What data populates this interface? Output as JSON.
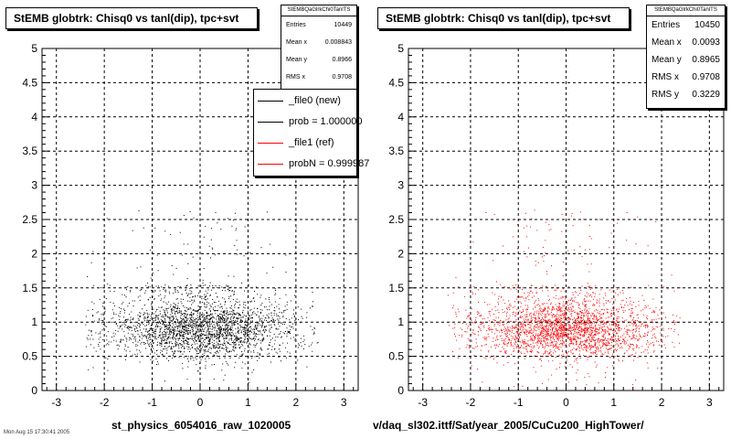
{
  "panels": [
    {
      "title": "StEMB globtrk: Chisq0 vs tanl(dip), tpc+svt",
      "xlabel": "st_physics_6054016_raw_1020005",
      "stats": {
        "name": "StEMBQaGlrkChi0TanlTS",
        "rows": [
          {
            "label": "Entries",
            "value": "10449"
          },
          {
            "label": "Mean x",
            "value": "0.008843"
          },
          {
            "label": "Mean y",
            "value": "0.8966"
          },
          {
            "label": "RMS x",
            "value": "0.9708"
          }
        ]
      },
      "legend": [
        {
          "label": "_file0 (new)",
          "color": "#000000"
        },
        {
          "label": "prob = 1.000000",
          "color": "#000000"
        },
        {
          "label": "_file1 (ref)",
          "color": "#ff0000"
        },
        {
          "label": "probN = 0.999987",
          "color": "#ff0000"
        }
      ]
    },
    {
      "title": "StEMB globtrk: Chisq0 vs tanl(dip), tpc+svt",
      "xlabel": "v/daq_sl302.ittf/Sat/year_2005/CuCu200_HighTower/",
      "stats": {
        "name": "StEMBQaGlrkChi0TanlTS",
        "rows": [
          {
            "label": "Entries",
            "value": "10450"
          },
          {
            "label": "Mean x",
            "value": "0.0093"
          },
          {
            "label": "Mean y",
            "value": "0.8965"
          },
          {
            "label": "RMS x",
            "value": "0.9708"
          },
          {
            "label": "RMS y",
            "value": "0.3229"
          }
        ]
      }
    }
  ],
  "footer": "Mon Aug 15 17:30:41 2005",
  "chart_data": [
    {
      "type": "scatter",
      "title": "StEMB globtrk: Chisq0 vs tanl(dip), tpc+svt",
      "xlabel": "st_physics_6054016_raw_1020005",
      "ylabel": "",
      "xlim": [
        -3.3,
        3.3
      ],
      "ylim": [
        0,
        5
      ],
      "xticks": [
        -3,
        -2,
        -1,
        0,
        1,
        2,
        3
      ],
      "yticks": [
        0,
        0.5,
        1,
        1.5,
        2,
        2.5,
        3,
        3.5,
        4,
        4.5,
        5
      ],
      "grid": true,
      "marker_color": "#000000",
      "distribution": {
        "entries": 10449,
        "mean_x": 0.008843,
        "mean_y": 0.8966,
        "rms_x": 0.9708
      },
      "series": [
        {
          "name": "_file0 (new)",
          "color": "#000000"
        }
      ]
    },
    {
      "type": "scatter",
      "title": "StEMB globtrk: Chisq0 vs tanl(dip), tpc+svt",
      "xlabel": "v/daq_sl302.ittf/Sat/year_2005/CuCu200_HighTower/",
      "ylabel": "",
      "xlim": [
        -3.3,
        3.3
      ],
      "ylim": [
        0,
        5
      ],
      "xticks": [
        -3,
        -2,
        -1,
        0,
        1,
        2,
        3
      ],
      "yticks": [
        0,
        0.5,
        1,
        1.5,
        2,
        2.5,
        3,
        3.5,
        4,
        4.5,
        5
      ],
      "grid": true,
      "marker_color": "#ff0000",
      "distribution": {
        "entries": 10450,
        "mean_x": 0.0093,
        "mean_y": 0.8965,
        "rms_x": 0.9708,
        "rms_y": 0.3229
      },
      "series": [
        {
          "name": "_file1 (ref)",
          "color": "#ff0000"
        }
      ]
    }
  ]
}
